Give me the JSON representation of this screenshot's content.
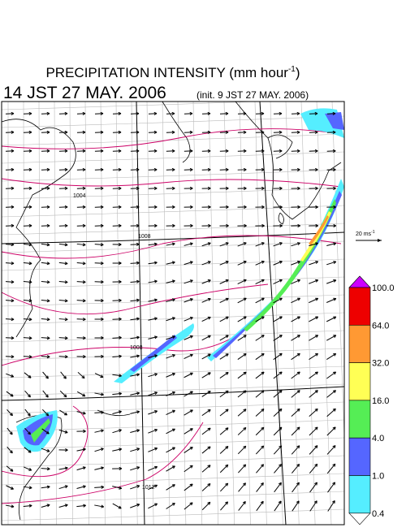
{
  "header": {
    "title": "PRECIPITATION INTENSITY (mm hour",
    "title_exponent": "-1",
    "title_end": ")",
    "valid_time": "14 JST 27 MAY. 2006",
    "init_time": "(init. 9 JST 27 MAY. 2006)"
  },
  "vector_scale": {
    "label": "20 ms",
    "exponent": "-1"
  },
  "isobar_labels": [
    "1004",
    "1008",
    "1008",
    "1012"
  ],
  "colorbar": {
    "labels": [
      "100.0",
      "64.0",
      "32.0",
      "16.0",
      "4.0",
      "1.0",
      "0.4"
    ],
    "colors": [
      "#cc00ff",
      "#ee0000",
      "#ff9933",
      "#ffff55",
      "#55ee55",
      "#5566ff",
      "#55eeff",
      "#ffffff"
    ]
  }
}
